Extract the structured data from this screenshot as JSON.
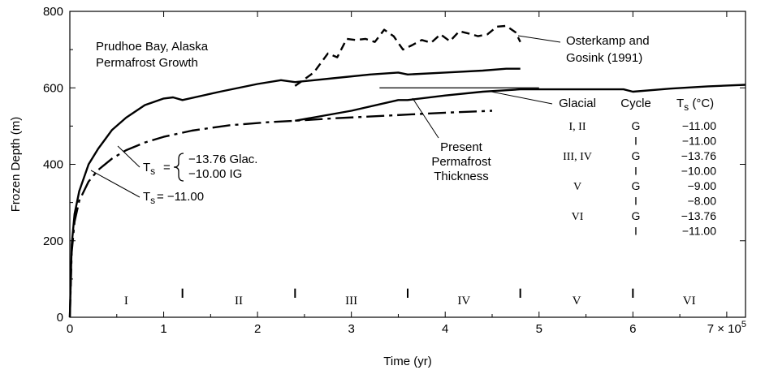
{
  "chart_data": {
    "type": "line",
    "xlabel": "Time (yr)",
    "ylabel": "Frozen Depth (m)",
    "xlim": [
      0,
      720000
    ],
    "ylim": [
      0,
      800
    ],
    "grid": false,
    "x_ticks": [
      0,
      100000,
      200000,
      300000,
      400000,
      500000,
      600000,
      700000
    ],
    "x_tick_labels": [
      "0",
      "1",
      "2",
      "3",
      "4",
      "5",
      "6",
      "7 × 10"
    ],
    "x_tick_exponent": "5",
    "y_ticks": [
      0,
      200,
      400,
      600,
      800
    ],
    "y_tick_labels": [
      "0",
      "200",
      "400",
      "600",
      "800"
    ],
    "annotations": {
      "site_line1": "Prudhoe Bay, Alaska",
      "site_line2": "Permafrost Growth",
      "osterkamp_line1": "Osterkamp and",
      "osterkamp_line2": "Gosink (1991)",
      "present_line1": "Present",
      "present_line2": "Permafrost",
      "present_line3": "Thickness",
      "ts_prefix": "T",
      "ts_sub": "s",
      "ts_eq": "=",
      "ts_glac": "−13.76 Glac.",
      "ts_ig": "−10.00 IG",
      "ts_const": "= −11.00"
    },
    "present_thickness": 600,
    "glacial_periods": [
      {
        "label": "I",
        "start": 0,
        "end": 120000
      },
      {
        "label": "II",
        "start": 120000,
        "end": 240000
      },
      {
        "label": "III",
        "start": 240000,
        "end": 360000
      },
      {
        "label": "IV",
        "start": 360000,
        "end": 480000
      },
      {
        "label": "V",
        "start": 480000,
        "end": 600000
      },
      {
        "label": "VI",
        "start": 600000,
        "end": 720000
      }
    ],
    "cycle_table": {
      "headers": {
        "glacial": "Glacial",
        "cycle": "Cycle",
        "ts_main": "T",
        "ts_sub": "s",
        "ts_unit": " (°C)"
      },
      "rows": [
        {
          "glacial": "I, II",
          "cycle": "G",
          "ts": "−11.00"
        },
        {
          "glacial": "",
          "cycle": "I",
          "ts": "−11.00"
        },
        {
          "glacial": "III, IV",
          "cycle": "G",
          "ts": "−13.76"
        },
        {
          "glacial": "",
          "cycle": "I",
          "ts": "−10.00"
        },
        {
          "glacial": "V",
          "cycle": "G",
          "ts": "−9.00"
        },
        {
          "glacial": "",
          "cycle": "I",
          "ts": "−8.00"
        },
        {
          "glacial": "VI",
          "cycle": "G",
          "ts": "−13.76"
        },
        {
          "glacial": "",
          "cycle": "I",
          "ts": "−11.00"
        }
      ]
    },
    "series": [
      {
        "style": "solid",
        "x": [
          0,
          2000,
          5000,
          10000,
          20000,
          30000,
          45000,
          60000,
          80000,
          100000,
          110000,
          120000,
          160000,
          200000,
          225000,
          240000,
          280000,
          320000,
          350000,
          360000,
          400000,
          440000,
          465000,
          480000
        ],
        "y": [
          0,
          190,
          270,
          330,
          400,
          440,
          490,
          522,
          555,
          572,
          575,
          568,
          590,
          610,
          620,
          615,
          625,
          635,
          640,
          635,
          640,
          645,
          650,
          650
        ]
      },
      {
        "style": "dash-dot",
        "x": [
          0,
          2000,
          5000,
          10000,
          20000,
          30000,
          45000,
          60000,
          80000,
          100000,
          130000,
          170000,
          210000,
          240000,
          280000,
          320000,
          360000,
          400000,
          450000
        ],
        "y": [
          0,
          170,
          250,
          305,
          355,
          385,
          415,
          437,
          457,
          472,
          488,
          502,
          510,
          514,
          520,
          525,
          530,
          535,
          540
        ]
      },
      {
        "style": "solid",
        "x": [
          240000,
          300000,
          350000,
          360000,
          400000,
          440000,
          480000,
          520000,
          560000,
          590000,
          600000,
          640000,
          680000,
          720000
        ],
        "y": [
          514,
          540,
          568,
          568,
          580,
          590,
          596,
          596,
          596,
          596,
          590,
          598,
          604,
          608
        ]
      },
      {
        "name": "Osterkamp and Gosink (1991)",
        "style": "dashed",
        "x": [
          240000,
          260000,
          275000,
          285000,
          295000,
          305000,
          315000,
          325000,
          335000,
          345000,
          355000,
          365000,
          375000,
          385000,
          395000,
          405000,
          415000,
          425000,
          435000,
          445000,
          455000,
          465000,
          475000,
          480000
        ],
        "y": [
          605,
          640,
          690,
          680,
          728,
          725,
          728,
          720,
          752,
          735,
          700,
          712,
          725,
          718,
          740,
          722,
          748,
          742,
          735,
          740,
          760,
          762,
          745,
          720
        ]
      }
    ]
  }
}
